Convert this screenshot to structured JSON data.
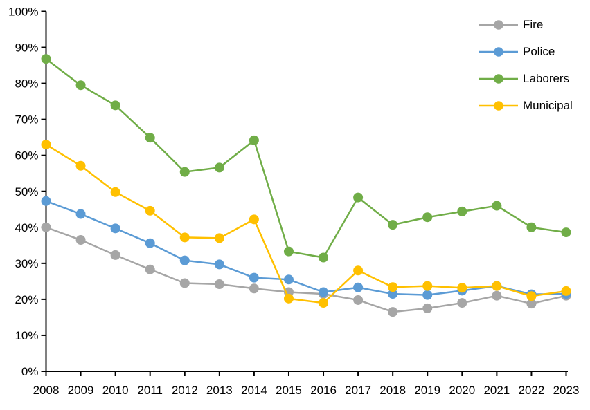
{
  "chart_data": {
    "type": "line",
    "title": "",
    "xlabel": "",
    "ylabel": "",
    "x": [
      "2008",
      "2009",
      "2010",
      "2011",
      "2012",
      "2013",
      "2014",
      "2015",
      "2016",
      "2017",
      "2018",
      "2019",
      "2020",
      "2021",
      "2022",
      "2023"
    ],
    "ylim": [
      0,
      100
    ],
    "ytick_step": 10,
    "ytick_suffix": "%",
    "grid": false,
    "legend_position": "top-right",
    "background": "#FFFFFF",
    "axis_color": "#000000",
    "series": [
      {
        "name": "Fire",
        "color": "#A6A6A6",
        "values": [
          40.0,
          36.5,
          32.3,
          28.3,
          24.5,
          24.2,
          23.0,
          22.0,
          21.5,
          19.8,
          16.5,
          17.5,
          19.0,
          21.0,
          18.8,
          21.0
        ]
      },
      {
        "name": "Police",
        "color": "#5B9BD5",
        "values": [
          47.3,
          43.7,
          39.7,
          35.6,
          30.8,
          29.7,
          26.0,
          25.5,
          22.0,
          23.3,
          21.5,
          21.2,
          22.4,
          23.7,
          21.4,
          21.5
        ]
      },
      {
        "name": "Laborers",
        "color": "#70AD47",
        "values": [
          86.8,
          79.5,
          73.9,
          64.9,
          55.4,
          56.6,
          64.2,
          33.3,
          31.6,
          48.3,
          40.7,
          42.8,
          44.4,
          46.0,
          40.0,
          38.6
        ]
      },
      {
        "name": "Municipal",
        "color": "#FFC000",
        "values": [
          63.0,
          57.1,
          49.8,
          44.6,
          37.2,
          37.0,
          42.2,
          20.2,
          19.0,
          28.0,
          23.4,
          23.7,
          23.2,
          23.7,
          20.9,
          22.3
        ]
      }
    ]
  }
}
